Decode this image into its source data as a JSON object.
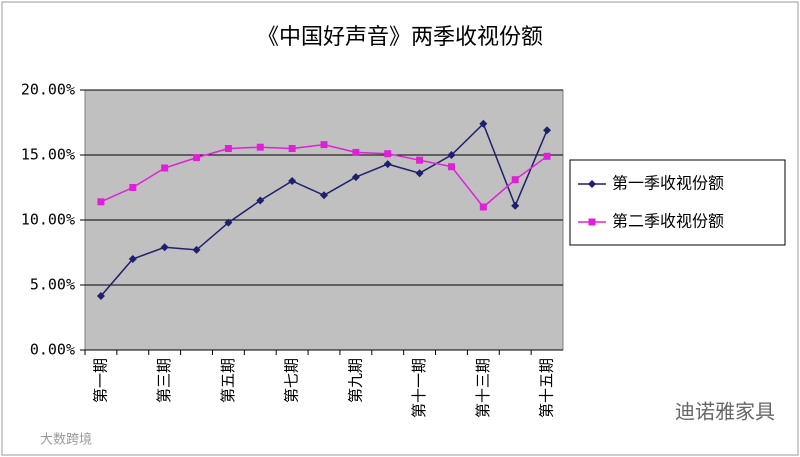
{
  "chart_data": {
    "type": "line",
    "title": "《中国好声音》两季收视份额",
    "categories": [
      "第一期",
      null,
      "第三期",
      null,
      "第五期",
      null,
      "第七期",
      null,
      "第九期",
      null,
      "第十一期",
      null,
      "第十三期",
      null,
      "第十五期"
    ],
    "series": [
      {
        "name": "第一季收视份额",
        "color": "#1f1f6e",
        "marker": "diamond",
        "values": [
          4.15,
          7.0,
          7.9,
          7.7,
          9.8,
          11.5,
          13.0,
          11.9,
          13.3,
          14.3,
          13.6,
          15.0,
          17.4,
          11.1,
          16.9
        ]
      },
      {
        "name": "第二季收视份额",
        "color": "#e020d8",
        "marker": "square",
        "values": [
          11.4,
          12.5,
          14.0,
          14.8,
          15.5,
          15.6,
          15.5,
          15.8,
          15.2,
          15.1,
          14.6,
          14.1,
          11.0,
          13.1,
          14.9
        ]
      }
    ],
    "ylim": [
      0,
      20
    ],
    "yticks": [
      {
        "value": 0,
        "label": "0.00%"
      },
      {
        "value": 5,
        "label": "5.00%"
      },
      {
        "value": 10,
        "label": "10.00%"
      },
      {
        "value": 15,
        "label": "15.00%"
      },
      {
        "value": 20,
        "label": "20.00%"
      }
    ],
    "grid": true,
    "legend": "right",
    "annotations": [
      "迪诺雅家具",
      "大数跨境"
    ]
  }
}
